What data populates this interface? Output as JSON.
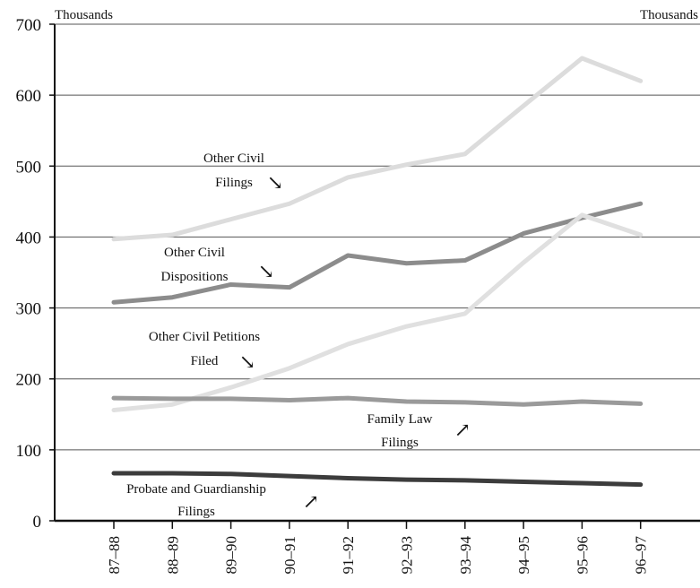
{
  "chart_data": {
    "type": "line",
    "title": "",
    "xlabel": "",
    "ylabel": "Thousands",
    "ylabel_right": "Thousands",
    "ylim": [
      0,
      700
    ],
    "yticks": [
      0,
      100,
      200,
      300,
      400,
      500,
      600,
      700
    ],
    "grid": true,
    "categories": [
      "87–88",
      "88–89",
      "89–90",
      "90–91",
      "91–92",
      "92–93",
      "93–94",
      "94–95",
      "95–96",
      "96–97"
    ],
    "series": [
      {
        "name": "Other Civil Filings",
        "color": "#dcdcdc",
        "values": [
          397,
          403,
          425,
          447,
          484,
          502,
          517,
          585,
          652,
          620
        ]
      },
      {
        "name": "Other Civil Dispositions",
        "color": "#8c8c8c",
        "values": [
          308,
          315,
          333,
          329,
          374,
          363,
          367,
          405,
          427,
          447
        ]
      },
      {
        "name": "Other Civil Petitions Filed",
        "color": "#e0e0e0",
        "values": [
          156,
          164,
          188,
          215,
          249,
          274,
          292,
          364,
          431,
          403
        ]
      },
      {
        "name": "Family Law Filings",
        "color": "#9a9a9a",
        "values": [
          173,
          172,
          172,
          170,
          173,
          168,
          167,
          164,
          168,
          165
        ]
      },
      {
        "name": "Probate and Guardianship Filings",
        "color": "#3c3c3c",
        "values": [
          67,
          67,
          66,
          63,
          60,
          58,
          57,
          55,
          53,
          51
        ]
      }
    ],
    "annotations": [
      {
        "id": "other-civil-filings",
        "lines": [
          "Other Civil",
          "Filings"
        ],
        "arrow": "↘"
      },
      {
        "id": "other-civil-dispositions",
        "lines": [
          "Other Civil",
          "Dispositions"
        ],
        "arrow": "↘"
      },
      {
        "id": "other-civil-petitions",
        "lines": [
          "Other Civil Petitions",
          "Filed"
        ],
        "arrow": "↘"
      },
      {
        "id": "family-law-filings",
        "lines": [
          "Family Law",
          "Filings"
        ],
        "arrow": "↗"
      },
      {
        "id": "probate-filings",
        "lines": [
          "Probate and Guardianship",
          "Filings"
        ],
        "arrow": "↗"
      }
    ]
  }
}
